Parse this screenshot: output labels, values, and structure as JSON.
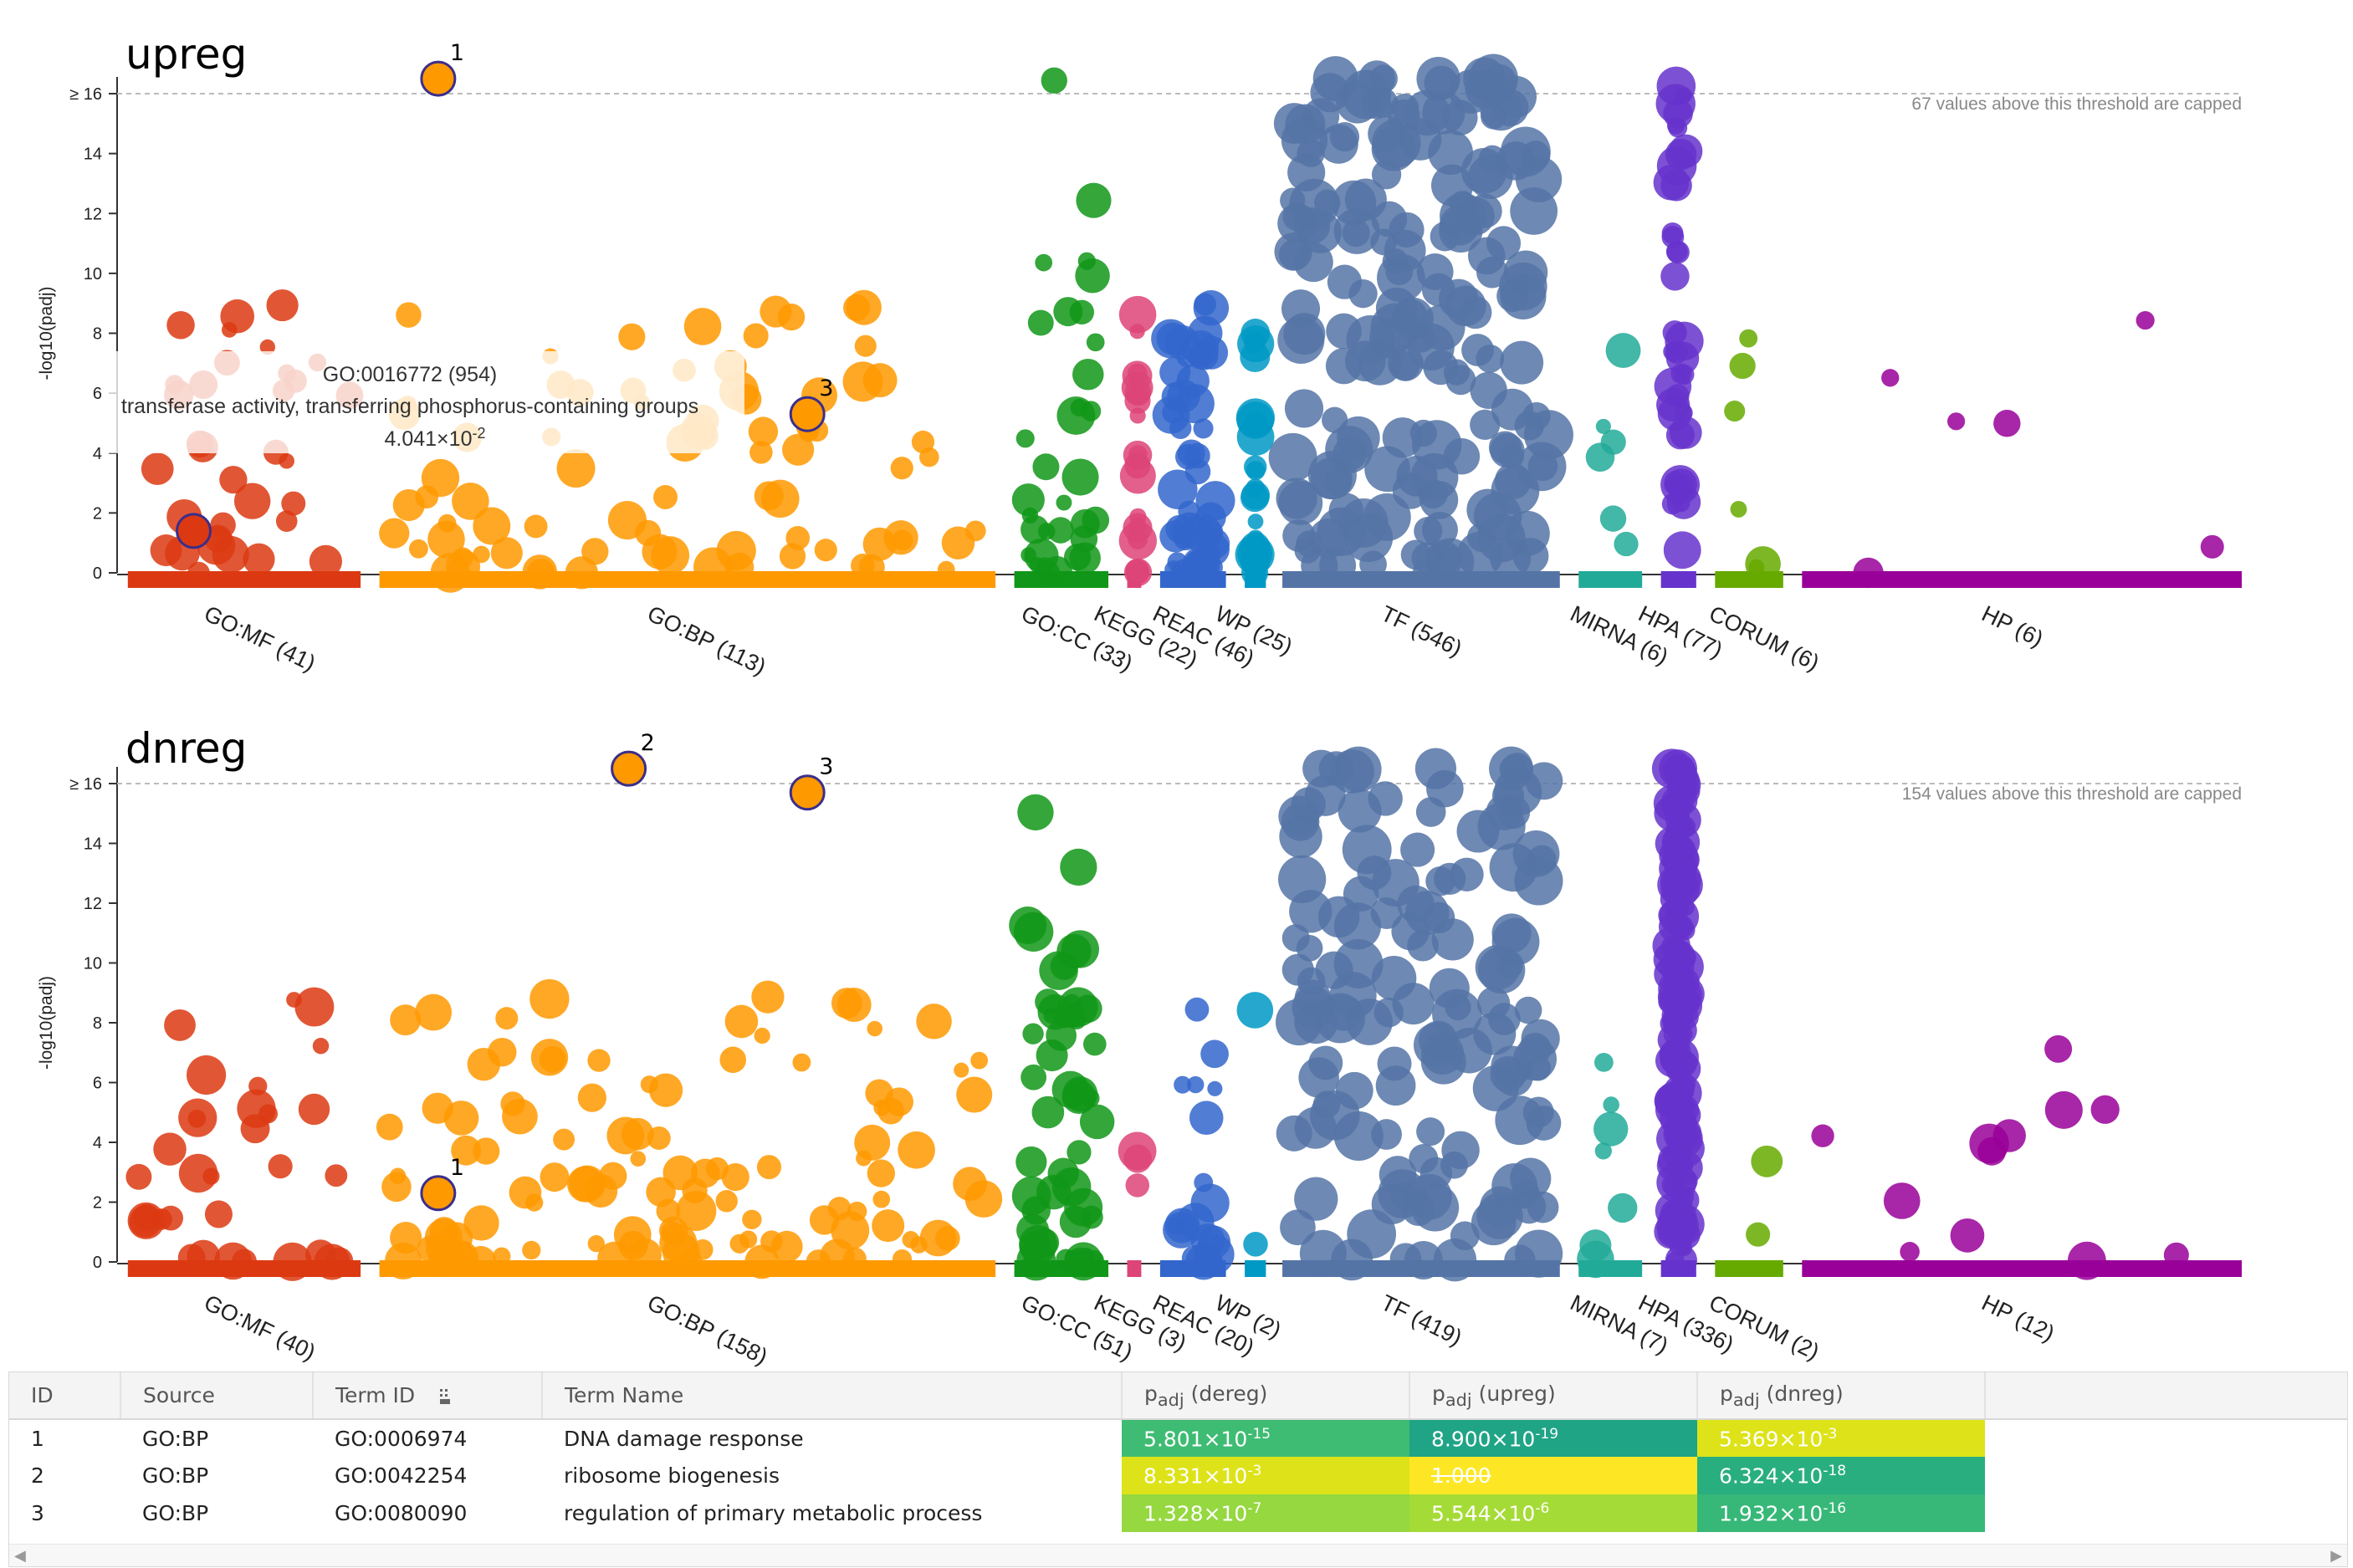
{
  "chart_data": [
    {
      "type": "scatter",
      "title": "upreg",
      "ylabel": "-log10(padj)",
      "ylim": [
        0,
        16
      ],
      "y_ticks": [
        "0",
        "2",
        "4",
        "6",
        "8",
        "10",
        "12",
        "14",
        "≥ 16"
      ],
      "cap_note": "67 values above this threshold are capped",
      "sources": [
        {
          "name": "GO:MF",
          "label": "GO:MF (41)",
          "color": "#dc3912",
          "x": [
            1,
            100
          ]
        },
        {
          "name": "GO:BP",
          "label": "GO:BP (113)",
          "color": "#ff9900",
          "x": [
            108,
            370
          ]
        },
        {
          "name": "GO:CC",
          "label": "GO:CC (33)",
          "color": "#109618",
          "x": [
            378,
            418
          ]
        },
        {
          "name": "KEGG",
          "label": "KEGG (22)",
          "color": "#dd4477",
          "x": [
            426,
            432
          ]
        },
        {
          "name": "REAC",
          "label": "REAC (46)",
          "color": "#3366cc",
          "x": [
            440,
            468
          ]
        },
        {
          "name": "WP",
          "label": "WP (25)",
          "color": "#0099c6",
          "x": [
            476,
            485
          ]
        },
        {
          "name": "TF",
          "label": "TF (546)",
          "color": "#5574a6",
          "x": [
            492,
            610
          ]
        },
        {
          "name": "MIRNA",
          "label": "MIRNA (6)",
          "color": "#22aa99",
          "x": [
            618,
            645
          ]
        },
        {
          "name": "HPA",
          "label": "HPA (77)",
          "color": "#6633cc",
          "x": [
            653,
            668
          ]
        },
        {
          "name": "CORUM",
          "label": "CORUM (6)",
          "color": "#66aa00",
          "x": [
            676,
            705
          ]
        },
        {
          "name": "HP",
          "label": "HP (6)",
          "color": "#990099",
          "x": [
            713,
            900
          ]
        }
      ],
      "highlighted": [
        {
          "id": "1",
          "source": "GO:BP",
          "x": 133,
          "y": 16.5
        },
        {
          "id": "3",
          "source": "GO:BP",
          "x": 290,
          "y": 5.3
        }
      ],
      "hovered_term": {
        "source": "GO:MF",
        "x": 29,
        "y": 1.4
      },
      "tooltip": {
        "term_id": "GO:0016772 (954)",
        "term_name": "transferase activity, transferring phosphorus-containing groups",
        "p_base": "4.041×10",
        "p_exp": "-2"
      }
    },
    {
      "type": "scatter",
      "title": "dnreg",
      "ylabel": "-log10(padj)",
      "ylim": [
        0,
        16
      ],
      "y_ticks": [
        "0",
        "2",
        "4",
        "6",
        "8",
        "10",
        "12",
        "14",
        "≥ 16"
      ],
      "cap_note": "154 values above this threshold are capped",
      "sources": [
        {
          "name": "GO:MF",
          "label": "GO:MF (40)",
          "color": "#dc3912",
          "x": [
            1,
            100
          ]
        },
        {
          "name": "GO:BP",
          "label": "GO:BP (158)",
          "color": "#ff9900",
          "x": [
            108,
            370
          ]
        },
        {
          "name": "GO:CC",
          "label": "GO:CC (51)",
          "color": "#109618",
          "x": [
            378,
            418
          ]
        },
        {
          "name": "KEGG",
          "label": "KEGG (3)",
          "color": "#dd4477",
          "x": [
            426,
            432
          ]
        },
        {
          "name": "REAC",
          "label": "REAC (20)",
          "color": "#3366cc",
          "x": [
            440,
            468
          ]
        },
        {
          "name": "WP",
          "label": "WP (2)",
          "color": "#0099c6",
          "x": [
            476,
            485
          ]
        },
        {
          "name": "TF",
          "label": "TF (419)",
          "color": "#5574a6",
          "x": [
            492,
            610
          ]
        },
        {
          "name": "MIRNA",
          "label": "MIRNA (7)",
          "color": "#22aa99",
          "x": [
            618,
            645
          ]
        },
        {
          "name": "HPA",
          "label": "HPA (336)",
          "color": "#6633cc",
          "x": [
            653,
            668
          ]
        },
        {
          "name": "CORUM",
          "label": "CORUM (2)",
          "color": "#66aa00",
          "x": [
            676,
            705
          ]
        },
        {
          "name": "HP",
          "label": "HP (12)",
          "color": "#990099",
          "x": [
            713,
            900
          ]
        }
      ],
      "highlighted": [
        {
          "id": "1",
          "source": "GO:BP",
          "x": 133,
          "y": 2.3
        },
        {
          "id": "2",
          "source": "GO:BP",
          "x": 214,
          "y": 16.5
        },
        {
          "id": "3",
          "source": "GO:BP",
          "x": 290,
          "y": 15.7
        }
      ]
    }
  ],
  "table": {
    "columns": [
      "ID",
      "Source",
      "Term ID",
      "Term Name",
      "p",
      "p",
      "p"
    ],
    "p_sub": "adj",
    "p_suffixes": [
      " (dereg)",
      " (upreg)",
      " (dnreg)"
    ],
    "rows": [
      {
        "id": "1",
        "source": "GO:BP",
        "term_id": "GO:0006974",
        "term_name": "DNA damage response",
        "p": [
          {
            "base": "5.801×10",
            "exp": "-15",
            "color": "#3fbc73"
          },
          {
            "base": "8.900×10",
            "exp": "-19",
            "color": "#20a486"
          },
          {
            "base": "5.369×10",
            "exp": "-3",
            "color": "#dde318"
          }
        ]
      },
      {
        "id": "2",
        "source": "GO:BP",
        "term_id": "GO:0042254",
        "term_name": "ribosome biogenesis",
        "p": [
          {
            "base": "8.331×10",
            "exp": "-3",
            "color": "#dde318"
          },
          {
            "base": "1.000",
            "exp": "",
            "color": "#fde725",
            "struck": true
          },
          {
            "base": "6.324×10",
            "exp": "-18",
            "color": "#29af7f"
          }
        ]
      },
      {
        "id": "3",
        "source": "GO:BP",
        "term_id": "GO:0080090",
        "term_name": "regulation of primary metabolic process",
        "p": [
          {
            "base": "1.328×10",
            "exp": "-7",
            "color": "#95d840"
          },
          {
            "base": "5.544×10",
            "exp": "-6",
            "color": "#a5db36"
          },
          {
            "base": "1.932×10",
            "exp": "-16",
            "color": "#37b878"
          }
        ]
      }
    ]
  },
  "icons": {
    "column_drag": "drag-handle-icon",
    "scroll_left": "chevron-left-icon",
    "scroll_right": "chevron-right-icon"
  }
}
